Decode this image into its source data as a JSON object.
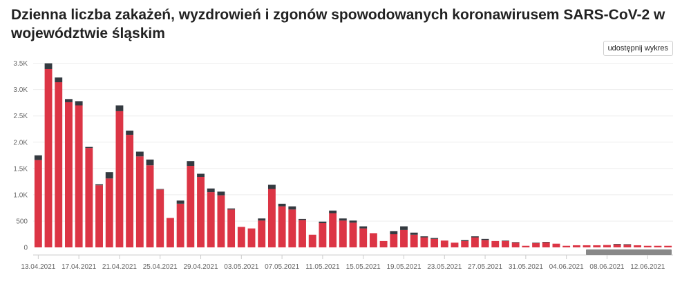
{
  "title": "Dzienna liczba zakażeń, wyzdrowień i zgonów spowodowanych koronawirusem SARS-CoV-2 w województwie śląskim",
  "share_button": "udostępnij wykres",
  "colors": {
    "cases": "#dc3545",
    "deaths": "#343a40",
    "grid": "#eeeeee",
    "axis": "#cccccc",
    "scroll": "#888888"
  },
  "chart_data": {
    "type": "bar",
    "stacked": true,
    "ylim": [
      0,
      3600
    ],
    "yticks": [
      0,
      500,
      1000,
      1500,
      2000,
      2500,
      3000,
      3500
    ],
    "ytick_labels": [
      "0",
      "500",
      "1.0K",
      "1.5K",
      "2.0K",
      "2.5K",
      "3.0K",
      "3.5K"
    ],
    "grid": true,
    "categories": [
      "13.04.2021",
      "14.04.2021",
      "15.04.2021",
      "16.04.2021",
      "17.04.2021",
      "18.04.2021",
      "19.04.2021",
      "20.04.2021",
      "21.04.2021",
      "22.04.2021",
      "23.04.2021",
      "24.04.2021",
      "25.04.2021",
      "26.04.2021",
      "27.04.2021",
      "28.04.2021",
      "29.04.2021",
      "30.04.2021",
      "01.05.2021",
      "02.05.2021",
      "03.05.2021",
      "04.05.2021",
      "05.05.2021",
      "06.05.2021",
      "07.05.2021",
      "08.05.2021",
      "09.05.2021",
      "10.05.2021",
      "11.05.2021",
      "12.05.2021",
      "13.05.2021",
      "14.05.2021",
      "15.05.2021",
      "16.05.2021",
      "17.05.2021",
      "18.05.2021",
      "19.05.2021",
      "20.05.2021",
      "21.05.2021",
      "22.05.2021",
      "23.05.2021",
      "24.05.2021",
      "25.05.2021",
      "26.05.2021",
      "27.05.2021",
      "28.05.2021",
      "29.05.2021",
      "30.05.2021",
      "31.05.2021",
      "01.06.2021",
      "02.06.2021",
      "03.06.2021",
      "04.06.2021",
      "05.06.2021",
      "06.06.2021",
      "07.06.2021",
      "08.06.2021",
      "09.06.2021",
      "10.06.2021",
      "11.06.2021",
      "12.06.2021",
      "13.06.2021",
      "14.06.2021"
    ],
    "xtick_labels": [
      "13.04.2021",
      "17.04.2021",
      "21.04.2021",
      "25.04.2021",
      "29.04.2021",
      "03.05.2021",
      "07.05.2021",
      "11.05.2021",
      "15.05.2021",
      "19.05.2021",
      "23.05.2021",
      "27.05.2021",
      "31.05.2021",
      "04.06.2021",
      "08.06.2021",
      "12.06.2021"
    ],
    "series": [
      {
        "values": [
          1660,
          3390,
          3140,
          2760,
          2700,
          1890,
          1180,
          1310,
          2590,
          2140,
          1730,
          1560,
          1100,
          560,
          830,
          1550,
          1340,
          1050,
          990,
          720,
          390,
          360,
          510,
          1110,
          780,
          720,
          520,
          240,
          460,
          650,
          510,
          470,
          360,
          270,
          120,
          250,
          330,
          240,
          190,
          160,
          130,
          90,
          120,
          190,
          140,
          120,
          120,
          90,
          30,
          80,
          95,
          70,
          30,
          40,
          40,
          40,
          45,
          55,
          50,
          40,
          30,
          30,
          30
        ]
      },
      {
        "values": [
          90,
          110,
          90,
          60,
          80,
          20,
          20,
          120,
          110,
          80,
          90,
          110,
          10,
          0,
          60,
          90,
          60,
          70,
          70,
          20,
          0,
          0,
          40,
          80,
          50,
          60,
          20,
          0,
          30,
          50,
          40,
          40,
          40,
          0,
          0,
          60,
          70,
          40,
          20,
          20,
          0,
          0,
          20,
          20,
          20,
          0,
          10,
          10,
          0,
          10,
          10,
          0,
          0,
          0,
          0,
          0,
          0,
          10,
          10,
          0,
          0,
          0,
          0
        ]
      }
    ]
  }
}
